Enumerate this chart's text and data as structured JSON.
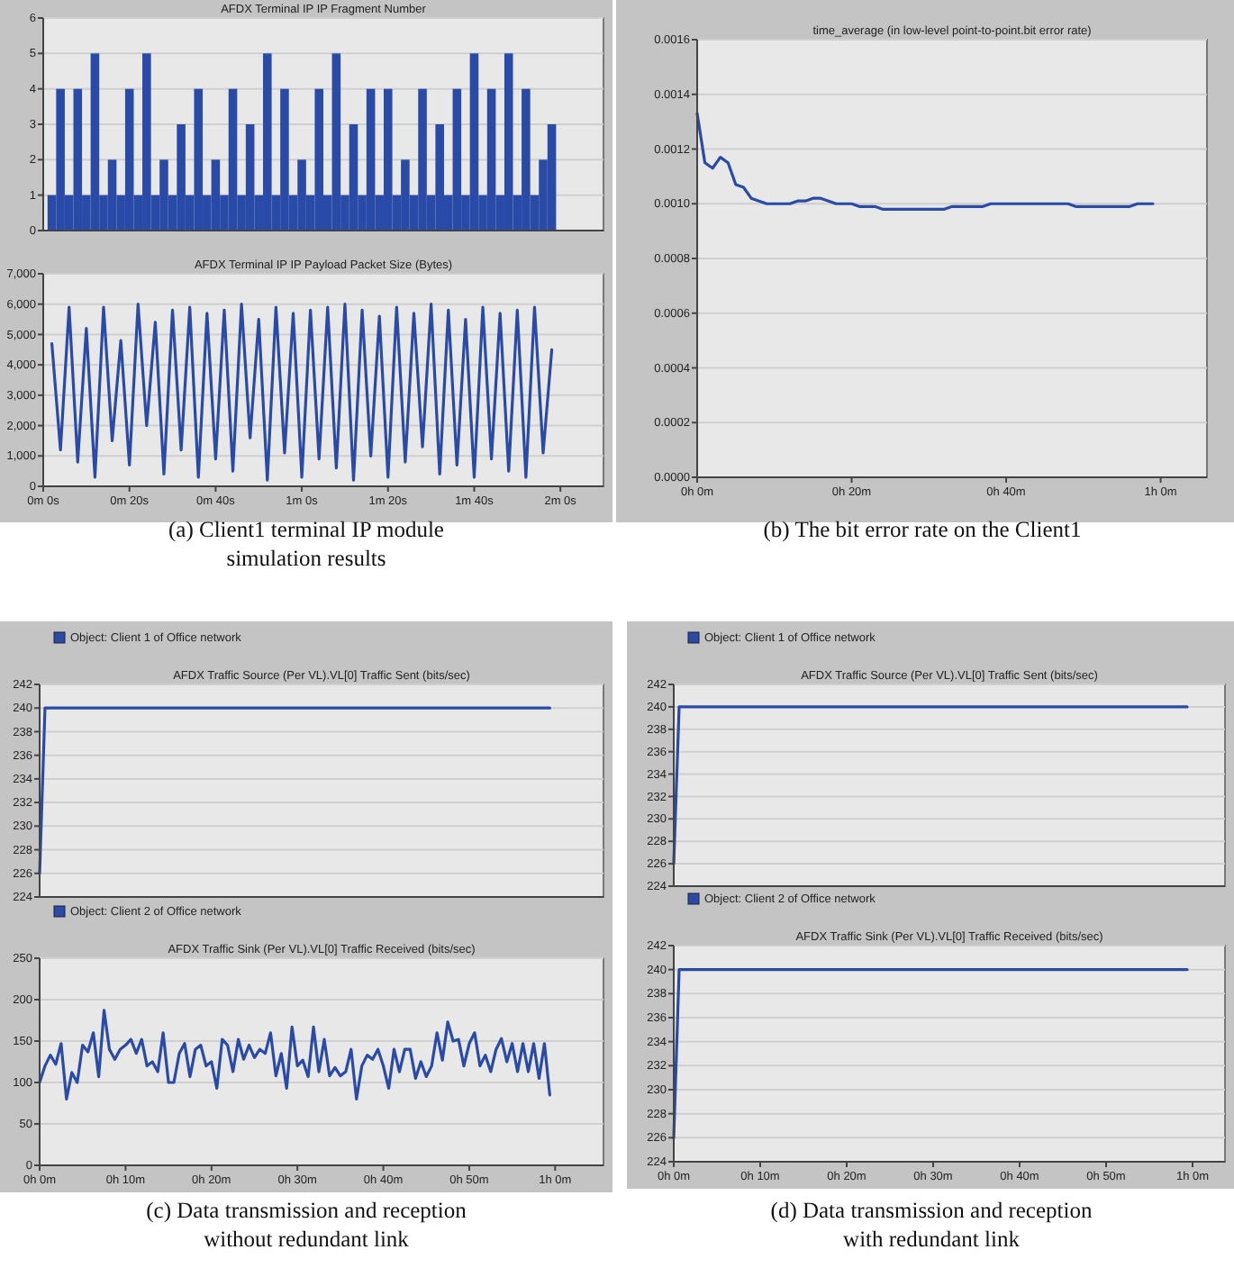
{
  "chart_data": [
    {
      "type": "bar",
      "title": "AFDX Terminal IP IP Fragment Number",
      "ylim": [
        0,
        6
      ],
      "yticks": [
        0,
        1,
        2,
        3,
        4,
        5,
        6
      ],
      "grid": "y",
      "tick_labels": "y",
      "categories": [
        null,
        null,
        null,
        null,
        null,
        null,
        null,
        null,
        null,
        null,
        null,
        null,
        null,
        null,
        null,
        null,
        null,
        null,
        null,
        null,
        null,
        null,
        null,
        null,
        null,
        null,
        null,
        null,
        null,
        null,
        null,
        null,
        null,
        null,
        null,
        null,
        null,
        null,
        null,
        null,
        null,
        null,
        null,
        null,
        null,
        null,
        null,
        null,
        null,
        null,
        null,
        null,
        null,
        null,
        null,
        null,
        null,
        null,
        null,
        null,
        null,
        null,
        null,
        null,
        null,
        null
      ],
      "series": [
        {
          "color": "#2a4aa8",
          "values": [
            null,
            1,
            4,
            1,
            4,
            1,
            5,
            1,
            2,
            1,
            4,
            1,
            5,
            1,
            2,
            1,
            3,
            1,
            4,
            1,
            2,
            1,
            4,
            1,
            3,
            1,
            5,
            1,
            4,
            1,
            2,
            1,
            4,
            1,
            5,
            1,
            3,
            1,
            4,
            1,
            4,
            1,
            2,
            1,
            4,
            1,
            3,
            1,
            4,
            1,
            5,
            1,
            4,
            1,
            5,
            1,
            4,
            1,
            2,
            3,
            null,
            null,
            null,
            null,
            null,
            null
          ]
        }
      ]
    },
    {
      "type": "line",
      "title": "AFDX Terminal IP IP Payload Packet Size (Bytes)",
      "ylim": [
        0,
        7000
      ],
      "yticks": [
        0,
        {
          "value": 1000,
          "label": "1,000"
        },
        {
          "value": 2000,
          "label": "2,000"
        },
        {
          "value": 3000,
          "label": "3,000"
        },
        {
          "value": 4000,
          "label": "4,000"
        },
        {
          "value": 5000,
          "label": "5,000"
        },
        {
          "value": 6000,
          "label": "6,000"
        },
        {
          "value": 7000,
          "label": "7,000"
        }
      ],
      "grid": "y",
      "categories": [
        "0m 0s",
        null,
        null,
        null,
        null,
        null,
        null,
        null,
        null,
        null,
        "0m 20s",
        null,
        null,
        null,
        null,
        null,
        null,
        null,
        null,
        null,
        "0m 40s",
        null,
        null,
        null,
        null,
        null,
        null,
        null,
        null,
        null,
        "1m 0s",
        null,
        null,
        null,
        null,
        null,
        null,
        null,
        null,
        null,
        "1m 20s",
        null,
        null,
        null,
        null,
        null,
        null,
        null,
        null,
        null,
        "1m 40s",
        null,
        null,
        null,
        null,
        null,
        null,
        null,
        null,
        null,
        "2m 0s",
        null,
        null,
        null,
        null,
        null
      ],
      "series": [
        {
          "color": "#2a4aa8",
          "values": [
            null,
            4700,
            1200,
            5900,
            800,
            5200,
            300,
            5900,
            1500,
            4800,
            700,
            6000,
            2000,
            5400,
            400,
            5800,
            1200,
            5900,
            300,
            5700,
            900,
            5800,
            500,
            6000,
            1600,
            5500,
            200,
            5900,
            1100,
            5700,
            300,
            5800,
            900,
            5900,
            600,
            6000,
            200,
            5800,
            1000,
            5600,
            300,
            5900,
            800,
            5700,
            1300,
            6000,
            400,
            5800,
            700,
            5500,
            300,
            5900,
            900,
            5700,
            500,
            5800,
            300,
            5900,
            1100,
            4500,
            null,
            null,
            null,
            null,
            null,
            null
          ]
        }
      ],
      "annotations": [
        "(a) Client1 terminal IP module simulation results"
      ]
    },
    {
      "type": "line",
      "title": "time_average (in low-level point-to-point.bit error rate)",
      "ylim": [
        0,
        0.0016
      ],
      "yticks": [
        {
          "value": 0,
          "label": "0.0000"
        },
        {
          "value": 0.0002,
          "label": "0.0002"
        },
        {
          "value": 0.0004,
          "label": "0.0004"
        },
        {
          "value": 0.0006,
          "label": "0.0006"
        },
        {
          "value": 0.0008,
          "label": "0.0008"
        },
        {
          "value": 0.001,
          "label": "0.0010"
        },
        {
          "value": 0.0012,
          "label": "0.0012"
        },
        {
          "value": 0.0014,
          "label": "0.0014"
        },
        {
          "value": 0.0016,
          "label": "0.0016"
        }
      ],
      "grid": "y",
      "categories": [
        "0h 0m",
        null,
        null,
        null,
        null,
        null,
        null,
        null,
        null,
        null,
        null,
        null,
        null,
        null,
        null,
        null,
        null,
        null,
        null,
        null,
        "0h 20m",
        null,
        null,
        null,
        null,
        null,
        null,
        null,
        null,
        null,
        null,
        null,
        null,
        null,
        null,
        null,
        null,
        null,
        null,
        null,
        "0h 40m",
        null,
        null,
        null,
        null,
        null,
        null,
        null,
        null,
        null,
        null,
        null,
        null,
        null,
        null,
        null,
        null,
        null,
        null,
        null,
        "1h 0m",
        null,
        null,
        null,
        null,
        null,
        null
      ],
      "series": [
        {
          "color": "#2a4aa8",
          "values": [
            0.00133,
            0.00115,
            0.00113,
            0.00117,
            0.00115,
            0.00107,
            0.00106,
            0.00102,
            0.00101,
            0.001,
            0.001,
            0.001,
            0.001,
            0.00101,
            0.00101,
            0.00102,
            0.00102,
            0.00101,
            0.001,
            0.001,
            0.001,
            0.00099,
            0.00099,
            0.00099,
            0.00098,
            0.00098,
            0.00098,
            0.00098,
            0.00098,
            0.00098,
            0.00098,
            0.00098,
            0.00098,
            0.00099,
            0.00099,
            0.00099,
            0.00099,
            0.00099,
            0.001,
            0.001,
            0.001,
            0.001,
            0.001,
            0.001,
            0.001,
            0.001,
            0.001,
            0.001,
            0.001,
            0.00099,
            0.00099,
            0.00099,
            0.00099,
            0.00099,
            0.00099,
            0.00099,
            0.00099,
            0.001,
            0.001,
            0.001,
            null,
            null,
            null,
            null,
            null,
            null,
            null
          ]
        }
      ],
      "annotations": [
        "(b) The bit error rate on the Client1"
      ]
    },
    {
      "type": "line",
      "title": "AFDX Traffic Source (Per VL).VL[0] Traffic Sent (bits/sec)",
      "ylim": [
        224,
        242
      ],
      "yticks": [
        224,
        226,
        228,
        230,
        232,
        234,
        236,
        238,
        240,
        242
      ],
      "grid": "y",
      "tick_labels": "y",
      "legend": "top left",
      "categories": [
        null,
        null,
        null,
        null,
        null,
        null,
        null,
        null,
        null,
        null,
        null,
        null,
        null,
        null,
        null,
        null,
        null,
        null,
        null,
        null,
        null,
        null,
        null,
        null,
        null,
        null,
        null,
        null,
        null,
        null,
        null,
        null,
        null,
        null,
        null,
        null,
        null,
        null,
        null,
        null,
        null,
        null,
        null,
        null,
        null,
        null,
        null,
        null,
        null,
        null,
        null,
        null,
        null,
        null,
        null,
        null,
        null,
        null,
        null,
        null,
        null,
        null,
        null,
        null,
        null,
        null,
        null,
        null,
        null,
        null,
        null,
        null,
        null,
        null,
        null,
        null,
        null,
        null,
        null,
        null,
        null,
        null,
        null,
        null,
        null,
        null,
        null,
        null,
        null,
        null,
        null,
        null,
        null,
        null,
        null,
        null,
        null,
        null,
        null,
        null,
        null,
        null,
        null,
        null,
        null,
        null
      ],
      "series": [
        {
          "name": "Object: Client 1 of Office network",
          "color": "#2a4aa8",
          "values": [
            226,
            240,
            240,
            240,
            240,
            240,
            240,
            240,
            240,
            240,
            240,
            240,
            240,
            240,
            240,
            240,
            240,
            240,
            240,
            240,
            240,
            240,
            240,
            240,
            240,
            240,
            240,
            240,
            240,
            240,
            240,
            240,
            240,
            240,
            240,
            240,
            240,
            240,
            240,
            240,
            240,
            240,
            240,
            240,
            240,
            240,
            240,
            240,
            240,
            240,
            240,
            240,
            240,
            240,
            240,
            240,
            240,
            240,
            240,
            240,
            240,
            240,
            240,
            240,
            240,
            240,
            240,
            240,
            240,
            240,
            240,
            240,
            240,
            240,
            240,
            240,
            240,
            240,
            240,
            240,
            240,
            240,
            240,
            240,
            240,
            240,
            240,
            240,
            240,
            240,
            240,
            240,
            240,
            240,
            240,
            240,
            null,
            null,
            null,
            null,
            null,
            null,
            null,
            null,
            null,
            null
          ]
        }
      ]
    },
    {
      "type": "line",
      "title": "AFDX Traffic Sink (Per VL).VL[0] Traffic Received (bits/sec)",
      "ylim": [
        0,
        250
      ],
      "yticks": [
        0,
        50,
        100,
        150,
        200,
        250
      ],
      "grid": "y",
      "legend": "top left",
      "categories": [
        "0h 0m",
        null,
        null,
        null,
        null,
        null,
        null,
        null,
        null,
        null,
        null,
        null,
        null,
        null,
        null,
        null,
        "0h 10m",
        null,
        null,
        null,
        null,
        null,
        null,
        null,
        null,
        null,
        null,
        null,
        null,
        null,
        null,
        null,
        "0h 20m",
        null,
        null,
        null,
        null,
        null,
        null,
        null,
        null,
        null,
        null,
        null,
        null,
        null,
        null,
        null,
        "0h 30m",
        null,
        null,
        null,
        null,
        null,
        null,
        null,
        null,
        null,
        null,
        null,
        null,
        null,
        null,
        null,
        "0h 40m",
        null,
        null,
        null,
        null,
        null,
        null,
        null,
        null,
        null,
        null,
        null,
        null,
        null,
        null,
        null,
        "0h 50m",
        null,
        null,
        null,
        null,
        null,
        null,
        null,
        null,
        null,
        null,
        null,
        null,
        null,
        null,
        null,
        "1h 0m",
        null,
        null,
        null,
        null,
        null,
        null,
        null,
        null,
        null
      ],
      "series": [
        {
          "name": "Object: Client 2 of Office network",
          "color": "#2a4aa8",
          "values": [
            100,
            120,
            133,
            122,
            147,
            80,
            112,
            100,
            145,
            137,
            160,
            107,
            187,
            140,
            128,
            140,
            145,
            152,
            135,
            152,
            120,
            125,
            113,
            160,
            100,
            100,
            135,
            147,
            107,
            140,
            145,
            120,
            125,
            93,
            152,
            145,
            113,
            152,
            128,
            145,
            130,
            140,
            135,
            160,
            108,
            135,
            93,
            167,
            120,
            127,
            107,
            167,
            113,
            152,
            108,
            118,
            108,
            113,
            140,
            80,
            120,
            133,
            128,
            140,
            120,
            93,
            140,
            113,
            140,
            140,
            105,
            125,
            107,
            120,
            160,
            127,
            173,
            150,
            152,
            120,
            147,
            160,
            120,
            133,
            113,
            140,
            153,
            125,
            147,
            113,
            147,
            113,
            147,
            105,
            147,
            85,
            null,
            null,
            null,
            null,
            null,
            null,
            null,
            null,
            null,
            null
          ]
        }
      ],
      "annotations": [
        "(c) Data transmission and reception without redundant link"
      ]
    },
    {
      "type": "line",
      "title": "AFDX Traffic Source (Per VL).VL[0] Traffic Sent (bits/sec)",
      "ylim": [
        224,
        242
      ],
      "yticks": [
        224,
        226,
        228,
        230,
        232,
        234,
        236,
        238,
        240,
        242
      ],
      "grid": "y",
      "tick_labels": "y",
      "legend": "top left",
      "categories": [
        null,
        null,
        null,
        null,
        null,
        null,
        null,
        null,
        null,
        null,
        null,
        null,
        null,
        null,
        null,
        null,
        null,
        null,
        null,
        null,
        null,
        null,
        null,
        null,
        null,
        null,
        null,
        null,
        null,
        null,
        null,
        null,
        null,
        null,
        null,
        null,
        null,
        null,
        null,
        null,
        null,
        null,
        null,
        null,
        null,
        null,
        null,
        null,
        null,
        null,
        null,
        null,
        null,
        null,
        null,
        null,
        null,
        null,
        null,
        null,
        null,
        null,
        null,
        null,
        null,
        null,
        null,
        null,
        null,
        null,
        null,
        null,
        null,
        null,
        null,
        null,
        null,
        null,
        null,
        null,
        null,
        null,
        null,
        null,
        null,
        null,
        null,
        null,
        null,
        null,
        null,
        null,
        null,
        null,
        null,
        null,
        null,
        null,
        null,
        null,
        null,
        null,
        null
      ],
      "series": [
        {
          "name": "Object: Client 1 of Office network",
          "color": "#2a4aa8",
          "values": [
            226,
            240,
            240,
            240,
            240,
            240,
            240,
            240,
            240,
            240,
            240,
            240,
            240,
            240,
            240,
            240,
            240,
            240,
            240,
            240,
            240,
            240,
            240,
            240,
            240,
            240,
            240,
            240,
            240,
            240,
            240,
            240,
            240,
            240,
            240,
            240,
            240,
            240,
            240,
            240,
            240,
            240,
            240,
            240,
            240,
            240,
            240,
            240,
            240,
            240,
            240,
            240,
            240,
            240,
            240,
            240,
            240,
            240,
            240,
            240,
            240,
            240,
            240,
            240,
            240,
            240,
            240,
            240,
            240,
            240,
            240,
            240,
            240,
            240,
            240,
            240,
            240,
            240,
            240,
            240,
            240,
            240,
            240,
            240,
            240,
            240,
            240,
            240,
            240,
            240,
            240,
            240,
            240,
            240,
            240,
            240,
            null,
            null,
            null,
            null,
            null,
            null,
            null
          ]
        }
      ]
    },
    {
      "type": "line",
      "title": "AFDX Traffic Sink (Per VL).VL[0] Traffic Received (bits/sec)",
      "ylim": [
        224,
        242
      ],
      "yticks": [
        224,
        226,
        228,
        230,
        232,
        234,
        236,
        238,
        240,
        242
      ],
      "grid": "y",
      "legend": "top left",
      "categories": [
        "0h 0m",
        null,
        null,
        null,
        null,
        null,
        null,
        null,
        null,
        null,
        null,
        null,
        null,
        null,
        null,
        null,
        "0h 10m",
        null,
        null,
        null,
        null,
        null,
        null,
        null,
        null,
        null,
        null,
        null,
        null,
        null,
        null,
        null,
        "0h 20m",
        null,
        null,
        null,
        null,
        null,
        null,
        null,
        null,
        null,
        null,
        null,
        null,
        null,
        null,
        null,
        "0h 30m",
        null,
        null,
        null,
        null,
        null,
        null,
        null,
        null,
        null,
        null,
        null,
        null,
        null,
        null,
        null,
        "0h 40m",
        null,
        null,
        null,
        null,
        null,
        null,
        null,
        null,
        null,
        null,
        null,
        null,
        null,
        null,
        null,
        "0h 50m",
        null,
        null,
        null,
        null,
        null,
        null,
        null,
        null,
        null,
        null,
        null,
        null,
        null,
        null,
        null,
        "1h 0m",
        null,
        null,
        null,
        null,
        null,
        null
      ],
      "series": [
        {
          "name": "Object: Client 2 of Office network",
          "color": "#2a4aa8",
          "values": [
            226,
            240,
            240,
            240,
            240,
            240,
            240,
            240,
            240,
            240,
            240,
            240,
            240,
            240,
            240,
            240,
            240,
            240,
            240,
            240,
            240,
            240,
            240,
            240,
            240,
            240,
            240,
            240,
            240,
            240,
            240,
            240,
            240,
            240,
            240,
            240,
            240,
            240,
            240,
            240,
            240,
            240,
            240,
            240,
            240,
            240,
            240,
            240,
            240,
            240,
            240,
            240,
            240,
            240,
            240,
            240,
            240,
            240,
            240,
            240,
            240,
            240,
            240,
            240,
            240,
            240,
            240,
            240,
            240,
            240,
            240,
            240,
            240,
            240,
            240,
            240,
            240,
            240,
            240,
            240,
            240,
            240,
            240,
            240,
            240,
            240,
            240,
            240,
            240,
            240,
            240,
            240,
            240,
            240,
            240,
            240,
            null,
            null,
            null,
            null,
            null,
            null,
            null
          ]
        }
      ],
      "annotations": [
        "(d) Data transmission and reception with redundant link"
      ]
    }
  ]
}
